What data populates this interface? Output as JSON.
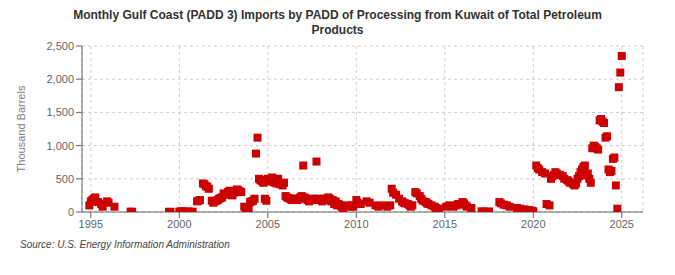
{
  "chart_data": {
    "type": "scatter",
    "title": "Monthly Gulf Coast (PADD 3) Imports by PADD of Processing from Kuwait of Total Petroleum\nProducts",
    "ylabel": "Thousand Barrels",
    "annotations": [
      "Source: U.S. Energy Information Administration"
    ],
    "color": "#cc0000",
    "marker": "square",
    "grid": true,
    "xlim": [
      1994.5,
      2026.2
    ],
    "ylim": [
      0,
      2500
    ],
    "xticks": [
      1995,
      2000,
      2005,
      2010,
      2015,
      2020,
      2025
    ],
    "yticks": [
      0,
      500,
      {
        "value": 1000,
        "label": "1,000"
      },
      {
        "value": 1500,
        "label": "1,500"
      },
      {
        "value": 2000,
        "label": "2,000"
      },
      {
        "value": 2500,
        "label": "2,500"
      }
    ],
    "x": [
      1994.917,
      1995.0,
      1995.083,
      1995.167,
      1995.25,
      1995.417,
      1995.583,
      1995.667,
      1995.917,
      1996.0,
      1996.333,
      1997.25,
      1997.333,
      1999.417,
      1999.5,
      2000.0,
      2000.083,
      2000.167,
      2000.25,
      2000.5,
      2000.667,
      2000.75,
      2001.0,
      2001.083,
      2001.167,
      2001.333,
      2001.417,
      2001.5,
      2001.583,
      2001.667,
      2001.833,
      2001.917,
      2002.0,
      2002.083,
      2002.167,
      2002.25,
      2002.333,
      2002.417,
      2002.5,
      2002.583,
      2002.667,
      2002.75,
      2002.833,
      2002.917,
      2003.0,
      2003.083,
      2003.167,
      2003.25,
      2003.333,
      2003.417,
      2003.5,
      2003.667,
      2003.75,
      2003.833,
      2003.917,
      2004.0,
      2004.083,
      2004.167,
      2004.25,
      2004.333,
      2004.417,
      2004.5,
      2004.583,
      2004.667,
      2004.75,
      2004.833,
      2004.917,
      2005.0,
      2005.083,
      2005.167,
      2005.25,
      2005.333,
      2005.417,
      2005.5,
      2005.583,
      2005.667,
      2005.75,
      2005.833,
      2005.917,
      2006.0,
      2006.083,
      2006.167,
      2006.25,
      2006.333,
      2006.417,
      2006.5,
      2006.583,
      2006.667,
      2006.75,
      2006.833,
      2006.917,
      2007.0,
      2007.083,
      2007.167,
      2007.25,
      2007.333,
      2007.417,
      2007.5,
      2007.583,
      2007.667,
      2007.75,
      2007.917,
      2008.0,
      2008.083,
      2008.167,
      2008.25,
      2008.333,
      2008.417,
      2008.5,
      2008.583,
      2008.667,
      2008.75,
      2008.833,
      2008.917,
      2009.0,
      2009.083,
      2009.167,
      2009.25,
      2009.5,
      2009.667,
      2009.75,
      2009.833,
      2010.0,
      2010.083,
      2010.25,
      2010.583,
      2010.75,
      2011.083,
      2011.25,
      2011.5,
      2011.75,
      2011.917,
      2012.0,
      2012.083,
      2012.25,
      2012.417,
      2012.583,
      2012.667,
      2012.75,
      2012.917,
      2013.0,
      2013.083,
      2013.167,
      2013.333,
      2013.417,
      2013.583,
      2013.667,
      2013.75,
      2013.917,
      2014.0,
      2014.083,
      2014.25,
      2014.417,
      2014.5,
      2014.667,
      2015.083,
      2015.25,
      2015.5,
      2015.667,
      2015.75,
      2016.0,
      2016.083,
      2016.167,
      2016.25,
      2016.5,
      2017.083,
      2017.25,
      2017.5,
      2018.083,
      2018.167,
      2018.333,
      2018.5,
      2018.667,
      2019.083,
      2019.25,
      2019.5,
      2019.75,
      2019.917,
      2020.0,
      2020.167,
      2020.25,
      2020.333,
      2020.5,
      2020.667,
      2020.75,
      2020.917,
      2021.0,
      2021.083,
      2021.167,
      2021.25,
      2021.333,
      2021.5,
      2021.667,
      2021.75,
      2021.917,
      2022.0,
      2022.083,
      2022.25,
      2022.333,
      2022.417,
      2022.5,
      2022.583,
      2022.667,
      2022.75,
      2022.833,
      2022.917,
      2023.0,
      2023.083,
      2023.167,
      2023.25,
      2023.333,
      2023.417,
      2023.5,
      2023.583,
      2023.667,
      2023.75,
      2023.833,
      2023.917,
      2024.0,
      2024.083,
      2024.167,
      2024.25,
      2024.333,
      2024.417,
      2024.5,
      2024.583,
      2024.667,
      2024.75,
      2024.833,
      2024.917,
      2025.0
    ],
    "values": [
      100,
      160,
      180,
      200,
      220,
      150,
      120,
      80,
      160,
      140,
      80,
      5,
      3,
      3,
      2,
      5,
      8,
      10,
      5,
      8,
      5,
      3,
      160,
      170,
      180,
      430,
      420,
      390,
      380,
      350,
      170,
      140,
      160,
      170,
      180,
      200,
      210,
      220,
      280,
      260,
      270,
      300,
      320,
      280,
      250,
      290,
      310,
      340,
      330,
      310,
      300,
      80,
      60,
      50,
      40,
      150,
      160,
      170,
      200,
      880,
      1120,
      500,
      480,
      460,
      440,
      200,
      170,
      500,
      460,
      500,
      520,
      450,
      440,
      430,
      500,
      420,
      440,
      400,
      440,
      240,
      220,
      210,
      200,
      180,
      200,
      190,
      200,
      180,
      200,
      220,
      240,
      700,
      220,
      200,
      180,
      160,
      180,
      200,
      180,
      200,
      760,
      200,
      180,
      160,
      200,
      180,
      200,
      220,
      200,
      160,
      180,
      120,
      160,
      100,
      120,
      100,
      80,
      60,
      100,
      80,
      100,
      80,
      180,
      140,
      120,
      160,
      140,
      100,
      80,
      100,
      80,
      100,
      350,
      290,
      260,
      200,
      160,
      140,
      130,
      120,
      100,
      80,
      100,
      300,
      280,
      240,
      200,
      170,
      150,
      130,
      120,
      100,
      80,
      60,
      50,
      80,
      100,
      80,
      100,
      120,
      150,
      130,
      100,
      80,
      60,
      10,
      5,
      8,
      150,
      130,
      110,
      100,
      80,
      60,
      50,
      40,
      30,
      20,
      10,
      700,
      660,
      640,
      600,
      580,
      120,
      100,
      500,
      540,
      560,
      600,
      580,
      560,
      540,
      500,
      480,
      460,
      440,
      420,
      400,
      430,
      500,
      540,
      600,
      640,
      680,
      700,
      550,
      580,
      500,
      440,
      960,
      1000,
      980,
      960,
      940,
      1380,
      1400,
      1360,
      1340,
      1120,
      1140,
      640,
      600,
      620,
      800,
      820,
      400,
      50,
      1880,
      2100,
      2350
    ]
  }
}
